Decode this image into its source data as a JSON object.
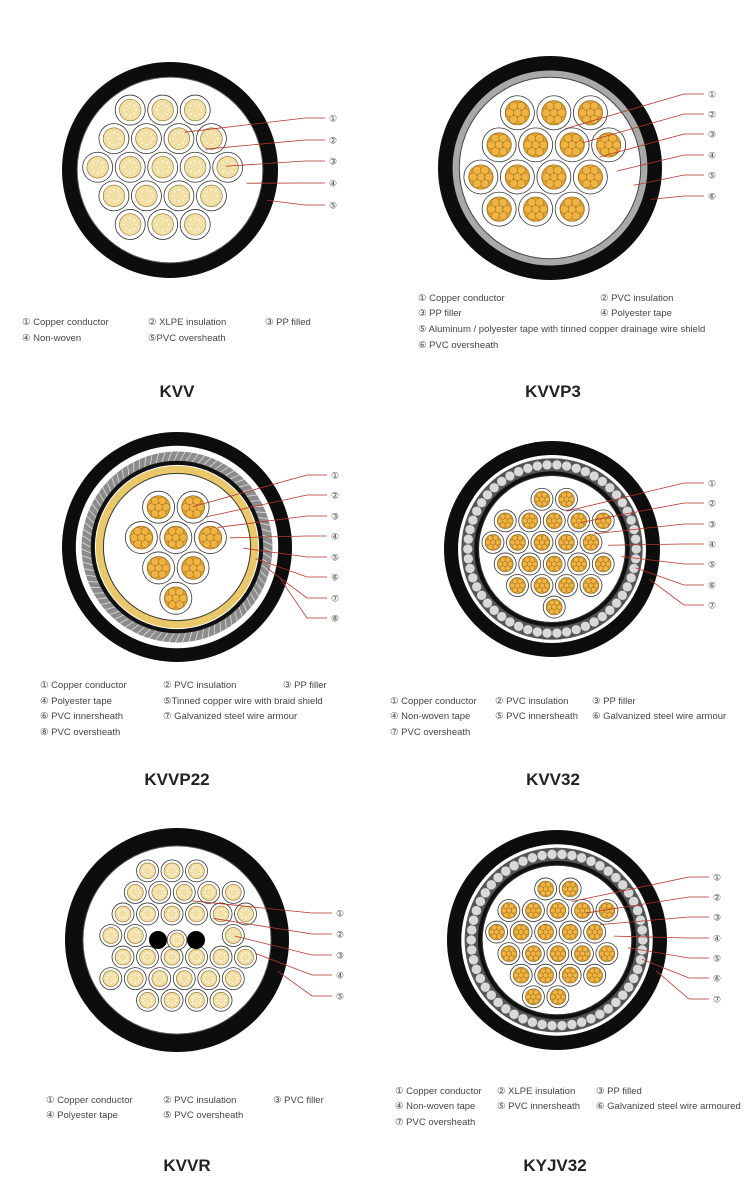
{
  "colors": {
    "sheath": "#0d0d0d",
    "leader": "#b5352a",
    "cream_core": "#f2dfa6",
    "copper_core": "#e6a12f",
    "shield_gray": "#a9a9a9",
    "braid": "#e9c86a"
  },
  "panels": [
    {
      "title": "KVV",
      "callouts": [
        "①",
        "②",
        "③",
        "④",
        "⑤"
      ],
      "legend": [
        "① Copper conductor",
        "② XLPE insulation",
        "③ PP filled",
        "④ Non-woven",
        "⑤PVC oversheath"
      ]
    },
    {
      "title": "KVVP3",
      "callouts": [
        "①",
        "②",
        "③",
        "④",
        "⑤",
        "⑥"
      ],
      "legend": [
        "① Copper conductor",
        "② PVC insulation",
        "③ PP filler",
        "④ Polyester tape",
        "⑤ Aluminum / polyester tape with  tinned copper drainage wire shield",
        "⑥ PVC oversheath"
      ]
    },
    {
      "title": "KVVP22",
      "callouts": [
        "①",
        "②",
        "③",
        "④",
        "⑤",
        "⑥",
        "⑦",
        "⑧"
      ],
      "legend": [
        "① Copper conductor",
        "② PVC insulation",
        "③ PP filler",
        "④ Polyester tape",
        "⑤Tinned copper wire with braid shield",
        "⑥ PVC innersheath",
        "⑦ Galvanized steel wire armour",
        "⑧ PVC oversheath"
      ]
    },
    {
      "title": "KVV32",
      "callouts": [
        "①",
        "②",
        "③",
        "④",
        "⑤",
        "⑥",
        "⑦"
      ],
      "legend": [
        "① Copper conductor",
        "② PVC insulation",
        "③ PP filler",
        "④ Non-woven tape",
        "⑤ PVC innersheath",
        "⑥ Galvanized steel wire armour",
        "⑦ PVC oversheath"
      ]
    },
    {
      "title": "KVVR",
      "callouts": [
        "①",
        "②",
        "③",
        "④",
        "⑤"
      ],
      "legend": [
        "① Copper conductor",
        "② PVC insulation",
        "③ PVC filler",
        "④ Polyester tape",
        "⑤ PVC oversheath"
      ]
    },
    {
      "title": "KYJV32",
      "callouts": [
        "①",
        "②",
        "③",
        "④",
        "⑤",
        "⑥",
        "⑦"
      ],
      "legend": [
        "① Copper conductor",
        "② XLPE insulation",
        "③ PP filled",
        "④ Non-woven tape",
        "⑤ PVC innersheath",
        "⑥ Galvanized steel wire armoured",
        "⑦ PVC oversheath"
      ]
    }
  ]
}
